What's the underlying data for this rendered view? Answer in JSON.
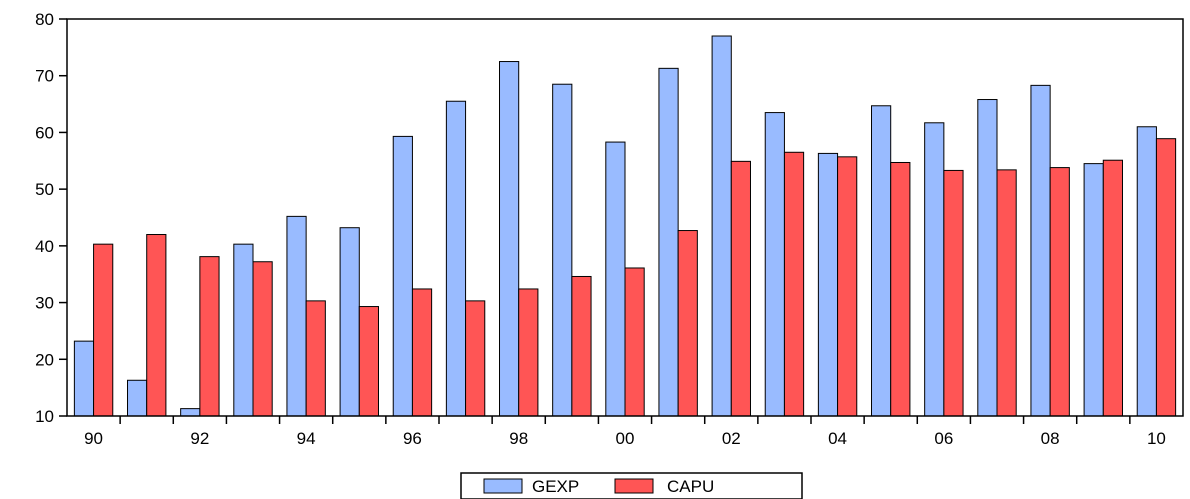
{
  "chart_data": {
    "type": "bar",
    "categories": [
      "1990",
      "1991",
      "1992",
      "1993",
      "1994",
      "1995",
      "1996",
      "1997",
      "1998",
      "1999",
      "2000",
      "2001",
      "2002",
      "2003",
      "2004",
      "2005",
      "2006",
      "2007",
      "2008",
      "2009",
      "2010"
    ],
    "x_tick_labels": [
      "90",
      "",
      "92",
      "",
      "94",
      "",
      "96",
      "",
      "98",
      "",
      "00",
      "",
      "02",
      "",
      "04",
      "",
      "06",
      "",
      "08",
      "",
      "10"
    ],
    "series": [
      {
        "name": "GEXP",
        "color": "#99bbff",
        "values": [
          23.2,
          16.3,
          11.3,
          40.3,
          45.2,
          43.2,
          59.3,
          65.5,
          72.5,
          68.5,
          58.3,
          71.3,
          77.0,
          63.5,
          56.3,
          64.7,
          61.7,
          65.8,
          68.3,
          54.5,
          61.0
        ]
      },
      {
        "name": "CAPU",
        "color": "#ff5555",
        "values": [
          40.3,
          42.0,
          38.1,
          37.2,
          30.3,
          29.3,
          32.4,
          30.3,
          32.4,
          34.6,
          36.1,
          42.7,
          54.9,
          56.5,
          55.7,
          54.7,
          53.3,
          53.4,
          53.8,
          55.1,
          58.9
        ]
      }
    ],
    "y_ticks": [
      "10",
      "20",
      "30",
      "40",
      "50",
      "60",
      "70",
      "80"
    ],
    "ylim": [
      10,
      80
    ],
    "grid": false,
    "legend_position": "bottom-center",
    "title": "",
    "xlabel": "",
    "ylabel": ""
  }
}
